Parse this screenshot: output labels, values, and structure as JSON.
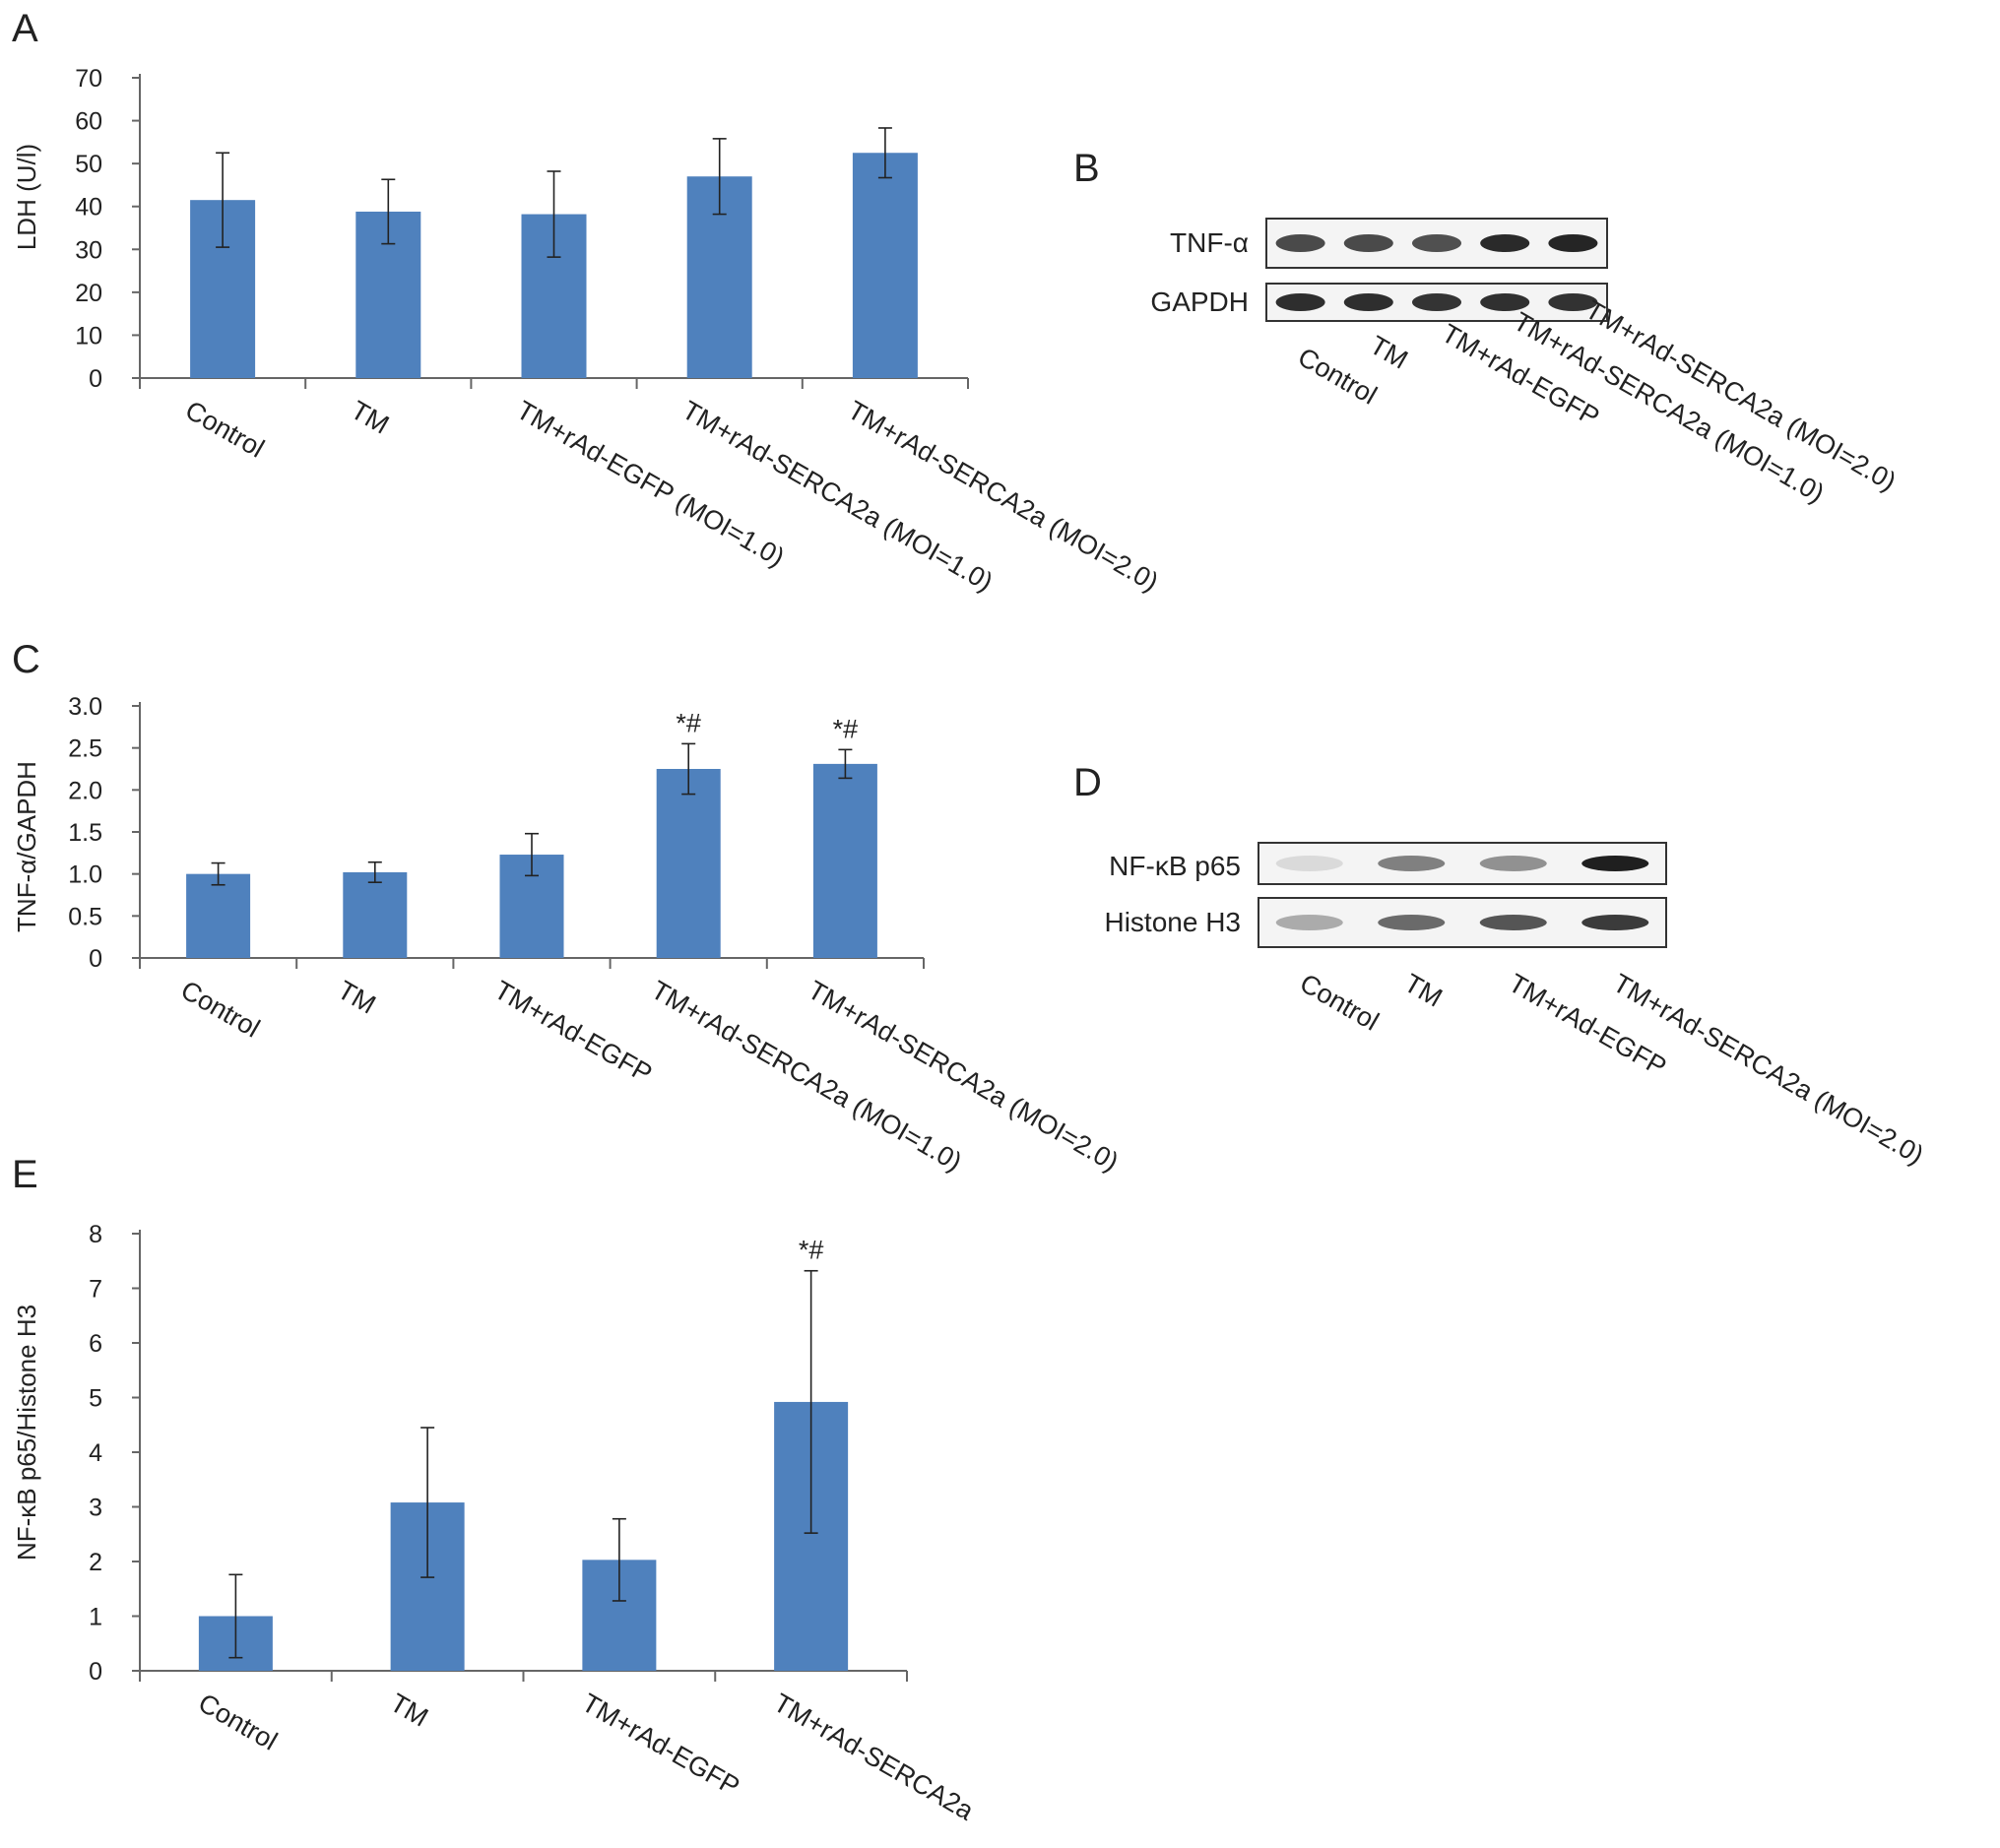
{
  "chart_data": [
    {
      "panel": "A",
      "type": "bar",
      "categories": [
        "Control",
        "TM",
        "TM+rAd-EGFP (MOI=1.0)",
        "TM+rAd-SERCA2a (MOI=1.0)",
        "TM+rAd-SERCA2a (MOI=2.0)"
      ],
      "values": [
        41.5,
        38.8,
        38.2,
        47.0,
        52.5
      ],
      "errors": [
        11,
        7.5,
        10,
        8.8,
        5.8
      ],
      "annotations": [
        "",
        "",
        "",
        "",
        ""
      ],
      "ylabel": "LDH (U/l)",
      "ylim": [
        0,
        70
      ],
      "yticks": [
        0,
        10,
        20,
        30,
        40,
        50,
        60,
        70
      ],
      "ytick_labels": [
        "0",
        "10",
        "20",
        "30",
        "40",
        "50",
        "60",
        "70"
      ],
      "bar_color": "#4f81bd",
      "grid": false
    },
    {
      "panel": "C",
      "type": "bar",
      "categories": [
        "Control",
        "TM",
        "TM+rAd-EGFP",
        "TM+rAd-SERCA2a (MOI=1.0)",
        "TM+rAd-SERCA2a (MOI=2.0)"
      ],
      "values": [
        1.0,
        1.02,
        1.23,
        2.25,
        2.31
      ],
      "errors": [
        0.13,
        0.12,
        0.25,
        0.3,
        0.17
      ],
      "annotations": [
        "",
        "",
        "",
        "*#",
        "*#"
      ],
      "ylabel": "TNF-α/GAPDH",
      "ylim": [
        0,
        3.0
      ],
      "yticks": [
        0,
        0.5,
        1.0,
        1.5,
        2.0,
        2.5,
        3.0
      ],
      "ytick_labels": [
        "0",
        "0.5",
        "1.0",
        "1.5",
        "2.0",
        "2.5",
        "3.0"
      ],
      "bar_color": "#4f81bd",
      "grid": false
    },
    {
      "panel": "E",
      "type": "bar",
      "categories": [
        "Control",
        "TM",
        "TM+rAd-EGFP",
        "TM+rAd-SERCA2a"
      ],
      "values": [
        1.0,
        3.08,
        2.03,
        4.92
      ],
      "errors": [
        0.76,
        1.37,
        0.75,
        2.4
      ],
      "annotations": [
        "",
        "",
        "",
        "*#"
      ],
      "ylabel": "NF-κB p65/Histone H3",
      "ylim": [
        0,
        8
      ],
      "yticks": [
        0,
        1,
        2,
        3,
        4,
        5,
        6,
        7,
        8
      ],
      "ytick_labels": [
        "0",
        "1",
        "2",
        "3",
        "4",
        "5",
        "6",
        "7",
        "8"
      ],
      "bar_color": "#4f81bd",
      "grid": false
    }
  ],
  "panel_letters": {
    "a": "A",
    "b": "B",
    "c": "C",
    "d": "D",
    "e": "E"
  },
  "blots": {
    "b": {
      "rows": [
        "TNF-α",
        "GAPDH"
      ],
      "lanes": [
        "Control",
        "TM",
        "TM+rAd-EGFP",
        "TM+rAd-SERCA2a (MOI=1.0)",
        "TM+rAd-SERCA2a (MOI=2.0)"
      ],
      "band_intensity": [
        [
          0.75,
          0.75,
          0.72,
          0.9,
          0.92
        ],
        [
          0.88,
          0.88,
          0.85,
          0.87,
          0.86
        ]
      ]
    },
    "d": {
      "rows": [
        "NF-κB p65",
        "Histone H3"
      ],
      "lanes": [
        "Control",
        "TM",
        "TM+rAd-EGFP",
        "TM+rAd-SERCA2a (MOI=2.0)"
      ],
      "band_intensity": [
        [
          0.08,
          0.5,
          0.42,
          0.95
        ],
        [
          0.3,
          0.6,
          0.7,
          0.82
        ]
      ]
    }
  }
}
